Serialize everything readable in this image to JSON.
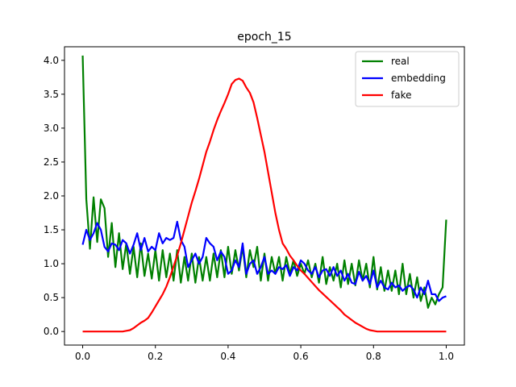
{
  "chart_data": {
    "type": "line",
    "title": "epoch_15",
    "xlabel": "",
    "ylabel": "",
    "xlim": [
      -0.05,
      1.05
    ],
    "ylim": [
      -0.2,
      4.2
    ],
    "xticks": [
      "0.0",
      "0.2",
      "0.4",
      "0.6",
      "0.8",
      "1.0"
    ],
    "yticks": [
      "0.0",
      "0.5",
      "1.0",
      "1.5",
      "2.0",
      "2.5",
      "3.0",
      "3.5",
      "4.0"
    ],
    "grid": false,
    "legend": "top-right",
    "series": [
      {
        "name": "real",
        "color": "#008000",
        "x": [
          0.0,
          0.01,
          0.02,
          0.03,
          0.04,
          0.05,
          0.06,
          0.07,
          0.08,
          0.09,
          0.1,
          0.11,
          0.12,
          0.13,
          0.14,
          0.15,
          0.16,
          0.17,
          0.18,
          0.19,
          0.2,
          0.21,
          0.22,
          0.23,
          0.24,
          0.25,
          0.26,
          0.27,
          0.28,
          0.29,
          0.3,
          0.31,
          0.32,
          0.33,
          0.34,
          0.35,
          0.36,
          0.37,
          0.38,
          0.39,
          0.4,
          0.41,
          0.42,
          0.43,
          0.44,
          0.45,
          0.46,
          0.47,
          0.48,
          0.49,
          0.5,
          0.51,
          0.52,
          0.53,
          0.54,
          0.55,
          0.56,
          0.57,
          0.58,
          0.59,
          0.6,
          0.61,
          0.62,
          0.63,
          0.64,
          0.65,
          0.66,
          0.67,
          0.68,
          0.69,
          0.7,
          0.71,
          0.72,
          0.73,
          0.74,
          0.75,
          0.76,
          0.77,
          0.78,
          0.79,
          0.8,
          0.81,
          0.82,
          0.83,
          0.84,
          0.85,
          0.86,
          0.87,
          0.88,
          0.89,
          0.9,
          0.91,
          0.92,
          0.93,
          0.94,
          0.95,
          0.96,
          0.97,
          0.98,
          0.99,
          1.0
        ],
        "values": [
          4.07,
          1.95,
          1.22,
          1.98,
          1.32,
          1.95,
          1.82,
          1.1,
          1.6,
          0.95,
          1.45,
          0.92,
          1.3,
          0.85,
          1.25,
          0.8,
          1.3,
          0.82,
          1.15,
          0.78,
          1.2,
          0.75,
          1.2,
          0.8,
          1.15,
          0.75,
          1.2,
          0.72,
          1.1,
          0.75,
          1.15,
          0.72,
          1.1,
          0.75,
          1.1,
          0.75,
          1.15,
          0.8,
          1.2,
          0.8,
          1.25,
          0.85,
          1.2,
          0.9,
          1.25,
          0.8,
          1.2,
          0.95,
          1.25,
          0.75,
          1.15,
          0.75,
          1.1,
          0.85,
          1.1,
          0.75,
          1.1,
          0.85,
          1.05,
          0.82,
          1.0,
          0.85,
          1.05,
          0.8,
          1.0,
          0.72,
          1.1,
          0.7,
          0.95,
          0.75,
          1.0,
          0.65,
          1.05,
          0.7,
          1.0,
          0.68,
          1.05,
          0.75,
          1.0,
          0.65,
          1.1,
          0.62,
          0.95,
          0.6,
          0.9,
          0.6,
          0.9,
          0.55,
          1.0,
          0.55,
          0.85,
          0.5,
          0.8,
          0.45,
          0.65,
          0.35,
          0.5,
          0.4,
          0.55,
          0.65,
          1.65
        ]
      },
      {
        "name": "embedding",
        "color": "#0000ff",
        "x": [
          0.0,
          0.01,
          0.02,
          0.03,
          0.04,
          0.05,
          0.06,
          0.07,
          0.08,
          0.09,
          0.1,
          0.11,
          0.12,
          0.13,
          0.14,
          0.15,
          0.16,
          0.17,
          0.18,
          0.19,
          0.2,
          0.21,
          0.22,
          0.23,
          0.24,
          0.25,
          0.26,
          0.27,
          0.28,
          0.29,
          0.3,
          0.31,
          0.32,
          0.33,
          0.34,
          0.35,
          0.36,
          0.37,
          0.38,
          0.39,
          0.4,
          0.41,
          0.42,
          0.43,
          0.44,
          0.45,
          0.46,
          0.47,
          0.48,
          0.49,
          0.5,
          0.51,
          0.52,
          0.53,
          0.54,
          0.55,
          0.56,
          0.57,
          0.58,
          0.59,
          0.6,
          0.61,
          0.62,
          0.63,
          0.64,
          0.65,
          0.66,
          0.67,
          0.68,
          0.69,
          0.7,
          0.71,
          0.72,
          0.73,
          0.74,
          0.75,
          0.76,
          0.77,
          0.78,
          0.79,
          0.8,
          0.81,
          0.82,
          0.83,
          0.84,
          0.85,
          0.86,
          0.87,
          0.88,
          0.89,
          0.9,
          0.91,
          0.92,
          0.93,
          0.94,
          0.95,
          0.96,
          0.97,
          0.98,
          0.99,
          1.0
        ],
        "values": [
          1.28,
          1.5,
          1.35,
          1.45,
          1.6,
          1.5,
          1.25,
          1.18,
          1.3,
          1.28,
          1.2,
          1.35,
          1.3,
          1.15,
          1.28,
          1.45,
          1.2,
          1.38,
          1.18,
          1.25,
          1.2,
          1.45,
          1.3,
          1.38,
          1.35,
          1.38,
          1.62,
          1.35,
          1.25,
          0.95,
          1.05,
          1.15,
          1.0,
          1.1,
          1.38,
          1.3,
          1.25,
          1.05,
          1.18,
          1.1,
          0.85,
          0.9,
          1.05,
          0.95,
          1.3,
          0.85,
          1.0,
          1.05,
          0.85,
          0.95,
          1.1,
          0.85,
          0.9,
          0.85,
          0.95,
          0.92,
          0.98,
          0.82,
          0.95,
          0.9,
          1.05,
          1.0,
          0.9,
          0.85,
          0.95,
          0.8,
          0.9,
          0.92,
          0.82,
          0.95,
          0.82,
          0.9,
          0.75,
          0.85,
          0.72,
          0.7,
          0.88,
          0.75,
          0.82,
          0.7,
          0.9,
          0.65,
          0.75,
          0.65,
          0.62,
          0.72,
          0.65,
          0.68,
          0.6,
          0.65,
          0.68,
          0.62,
          0.5,
          0.65,
          0.55,
          0.75,
          0.55,
          0.55,
          0.45,
          0.5,
          0.52
        ]
      },
      {
        "name": "fake",
        "color": "#ff0000",
        "x": [
          0.0,
          0.01,
          0.02,
          0.03,
          0.04,
          0.05,
          0.06,
          0.07,
          0.08,
          0.09,
          0.1,
          0.11,
          0.12,
          0.13,
          0.14,
          0.15,
          0.16,
          0.17,
          0.18,
          0.19,
          0.2,
          0.21,
          0.22,
          0.23,
          0.24,
          0.25,
          0.26,
          0.27,
          0.28,
          0.29,
          0.3,
          0.31,
          0.32,
          0.33,
          0.34,
          0.35,
          0.36,
          0.37,
          0.38,
          0.39,
          0.4,
          0.41,
          0.42,
          0.43,
          0.44,
          0.45,
          0.46,
          0.47,
          0.48,
          0.49,
          0.5,
          0.51,
          0.52,
          0.53,
          0.54,
          0.55,
          0.56,
          0.57,
          0.58,
          0.59,
          0.6,
          0.61,
          0.62,
          0.63,
          0.64,
          0.65,
          0.66,
          0.67,
          0.68,
          0.69,
          0.7,
          0.71,
          0.72,
          0.73,
          0.74,
          0.75,
          0.76,
          0.77,
          0.78,
          0.79,
          0.8,
          0.81,
          0.82,
          0.83,
          0.84,
          0.85,
          0.86,
          0.87,
          0.88,
          0.89,
          0.9,
          0.91,
          0.92,
          0.93,
          0.94,
          0.95,
          0.96,
          0.97,
          0.98,
          0.99,
          1.0
        ],
        "values": [
          0.0,
          0.0,
          0.0,
          0.0,
          0.0,
          0.0,
          0.0,
          0.0,
          0.0,
          0.0,
          0.0,
          0.0,
          0.01,
          0.02,
          0.05,
          0.09,
          0.13,
          0.16,
          0.2,
          0.28,
          0.37,
          0.46,
          0.55,
          0.66,
          0.8,
          0.96,
          1.12,
          1.3,
          1.5,
          1.7,
          1.9,
          2.07,
          2.25,
          2.45,
          2.65,
          2.8,
          2.97,
          3.12,
          3.25,
          3.37,
          3.5,
          3.65,
          3.71,
          3.73,
          3.7,
          3.6,
          3.52,
          3.38,
          3.15,
          2.9,
          2.65,
          2.35,
          2.05,
          1.75,
          1.5,
          1.3,
          1.22,
          1.12,
          1.05,
          0.97,
          0.9,
          0.85,
          0.79,
          0.73,
          0.67,
          0.61,
          0.56,
          0.51,
          0.46,
          0.41,
          0.36,
          0.31,
          0.25,
          0.21,
          0.17,
          0.13,
          0.1,
          0.07,
          0.04,
          0.02,
          0.01,
          0.0,
          0.0,
          0.0,
          0.0,
          0.0,
          0.0,
          0.0,
          0.0,
          0.0,
          0.0,
          0.0,
          0.0,
          0.0,
          0.0,
          0.0,
          0.0,
          0.0,
          0.0,
          0.0,
          0.0
        ]
      }
    ]
  }
}
